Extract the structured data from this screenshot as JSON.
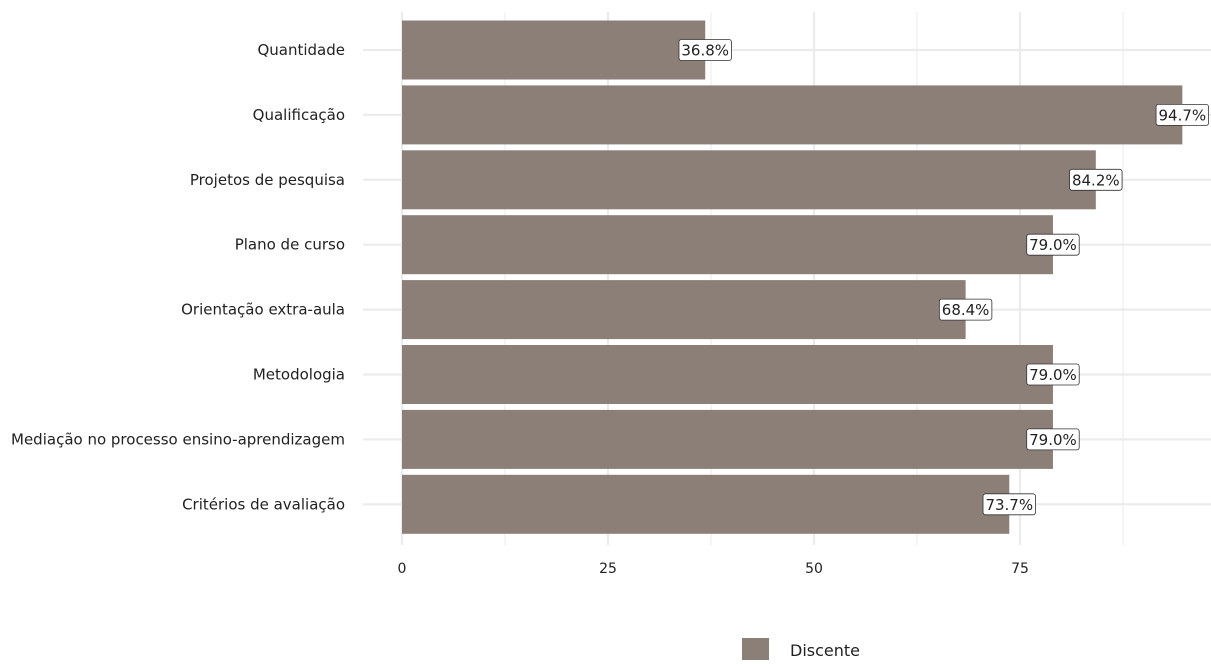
{
  "chart_data": {
    "type": "bar",
    "orientation": "horizontal",
    "categories": [
      "Quantidade",
      "Qualificação",
      "Projetos de pesquisa",
      "Plano de curso",
      "Orientação extra-aula",
      "Metodologia",
      "Mediação no processo ensino-aprendizagem",
      "Critérios de avaliação"
    ],
    "series": [
      {
        "name": "Discente",
        "values": [
          36.8,
          94.7,
          84.2,
          79.0,
          68.4,
          79.0,
          79.0,
          73.7
        ],
        "labels": [
          "36.8%",
          "94.7%",
          "84.2%",
          "79.0%",
          "68.4%",
          "79.0%",
          "79.0%",
          "73.7%"
        ]
      }
    ],
    "x_ticks": [
      "0",
      "25",
      "50",
      "75"
    ],
    "xlim": [
      0,
      98
    ],
    "grid": true,
    "legend_position": "bottom",
    "colors": {
      "bar": "#8b7f77",
      "grid": "#ebebeb",
      "label_border": "#333333",
      "text": "#222222"
    },
    "title": "",
    "xlabel": "",
    "ylabel": ""
  }
}
